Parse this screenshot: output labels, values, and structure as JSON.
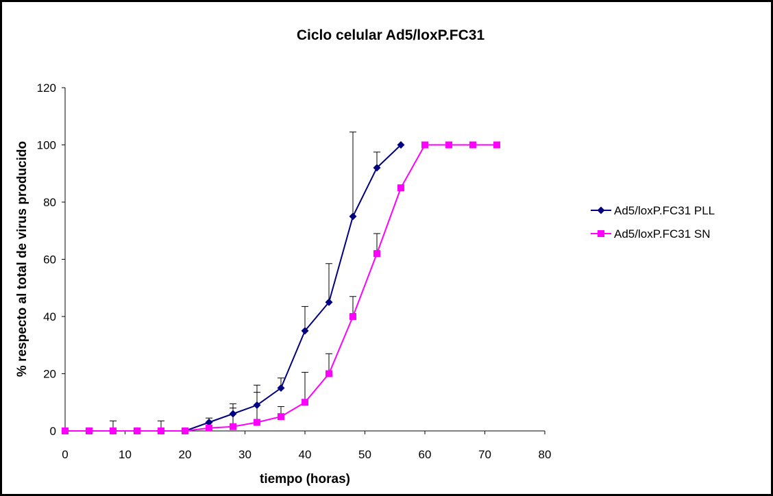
{
  "chart_data": {
    "type": "line",
    "title": "Ciclo celular Ad5/loxP.FC31",
    "xlabel": "tiempo (horas)",
    "ylabel": "% respecto al total de virus producido",
    "xlim": [
      0,
      80
    ],
    "ylim": [
      0,
      120
    ],
    "x_ticks": [
      "0",
      "10",
      "20",
      "30",
      "40",
      "50",
      "60",
      "70",
      "80"
    ],
    "y_ticks": [
      "0",
      "20",
      "40",
      "60",
      "80",
      "100",
      "120"
    ],
    "grid": false,
    "legend_position": "right",
    "series": [
      {
        "name": "Ad5/loxP.FC31 PLL",
        "color": "#000080",
        "marker": "diamond",
        "points": [
          {
            "x": 0,
            "y": 0
          },
          {
            "x": 4,
            "y": 0
          },
          {
            "x": 8,
            "y": 0,
            "err": 3.5
          },
          {
            "x": 12,
            "y": 0
          },
          {
            "x": 16,
            "y": 0,
            "err": 3.5
          },
          {
            "x": 20,
            "y": 0
          },
          {
            "x": 24,
            "y": 3,
            "err": 1.5
          },
          {
            "x": 28,
            "y": 6,
            "err": 3.5
          },
          {
            "x": 32,
            "y": 9,
            "err": 7
          },
          {
            "x": 36,
            "y": 15,
            "err": 3.5
          },
          {
            "x": 40,
            "y": 35,
            "err": 8.5
          },
          {
            "x": 44,
            "y": 45,
            "err": 13.5
          },
          {
            "x": 48,
            "y": 75,
            "err": 29.5
          },
          {
            "x": 52,
            "y": 92,
            "err": 5.5
          },
          {
            "x": 56,
            "y": 100
          }
        ]
      },
      {
        "name": "Ad5/loxP.FC31 SN",
        "color": "#FF00FF",
        "marker": "square",
        "points": [
          {
            "x": 0,
            "y": 0
          },
          {
            "x": 4,
            "y": 0
          },
          {
            "x": 8,
            "y": 0
          },
          {
            "x": 12,
            "y": 0
          },
          {
            "x": 16,
            "y": 0
          },
          {
            "x": 20,
            "y": 0
          },
          {
            "x": 24,
            "y": 1,
            "err": 2
          },
          {
            "x": 28,
            "y": 1.5,
            "err": 6.5
          },
          {
            "x": 32,
            "y": 3,
            "err": 10.5
          },
          {
            "x": 36,
            "y": 5,
            "err": 3.5
          },
          {
            "x": 40,
            "y": 10,
            "err": 10.5
          },
          {
            "x": 44,
            "y": 20,
            "err": 7
          },
          {
            "x": 48,
            "y": 40,
            "err": 7
          },
          {
            "x": 52,
            "y": 62,
            "err": 7
          },
          {
            "x": 56,
            "y": 85
          },
          {
            "x": 60,
            "y": 100
          },
          {
            "x": 64,
            "y": 100
          },
          {
            "x": 68,
            "y": 100
          },
          {
            "x": 72,
            "y": 100
          }
        ]
      }
    ]
  }
}
